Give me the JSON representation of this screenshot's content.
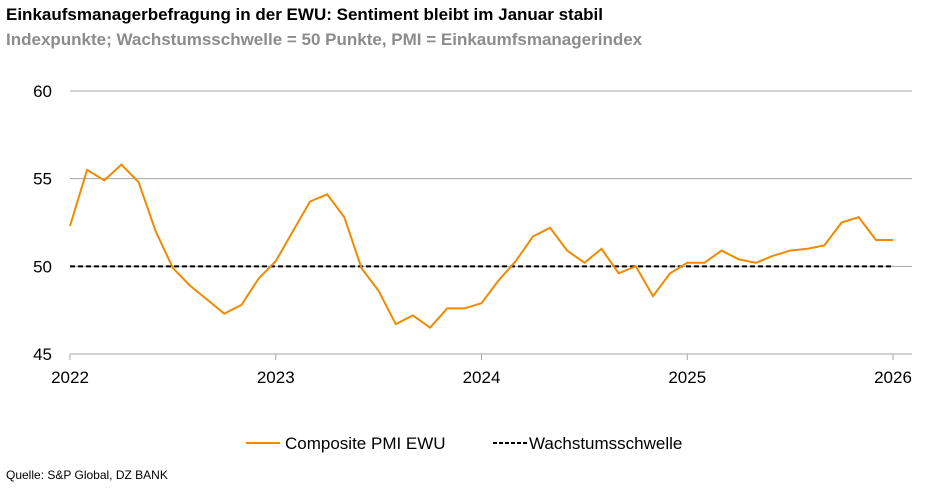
{
  "title": "Einkaufsmanagerbefragung in der EWU: Sentiment bleibt im Januar stabil",
  "subtitle": "Indexpunkte; Wachstumsschwelle = 50 Punkte, PMI = Einkaumfsmanagerindex",
  "source": "Quelle: S&P Global, DZ BANK",
  "chart_data": {
    "type": "line",
    "title": "Einkaufsmanagerbefragung in der EWU: Sentiment bleibt im Januar stabil",
    "subtitle": "Indexpunkte; Wachstumsschwelle = 50 Punkte, PMI = Einkaumfsmanagerindex",
    "xlabel": "",
    "ylabel": "",
    "ylim": [
      45,
      60
    ],
    "yticks": [
      "45",
      "50",
      "55",
      "60"
    ],
    "xticks": [
      "2022",
      "2023",
      "2024",
      "2025",
      "2026"
    ],
    "x_start": "2022-01",
    "x_end": "2026-01",
    "grid": "horizontal",
    "legend_position": "bottom",
    "series": [
      {
        "name": "Composite PMI EWU",
        "color": "#f08a00",
        "style": "solid",
        "values": [
          52.3,
          55.5,
          54.9,
          55.8,
          54.8,
          52.0,
          49.9,
          48.9,
          48.1,
          47.3,
          47.8,
          49.3,
          50.3,
          52.0,
          53.7,
          54.1,
          52.8,
          49.9,
          48.6,
          46.7,
          47.2,
          46.5,
          47.6,
          47.6,
          47.9,
          49.2,
          50.3,
          51.7,
          52.2,
          50.9,
          50.2,
          51.0,
          49.6,
          50.0,
          48.3,
          49.6,
          50.2,
          50.2,
          50.9,
          50.4,
          50.2,
          50.6,
          50.9,
          51.0,
          51.2,
          52.5,
          52.8,
          51.5,
          51.5
        ]
      },
      {
        "name": "Wachstumsschwelle",
        "color": "#000000",
        "style": "dashed",
        "values": [
          50,
          50
        ]
      }
    ]
  }
}
